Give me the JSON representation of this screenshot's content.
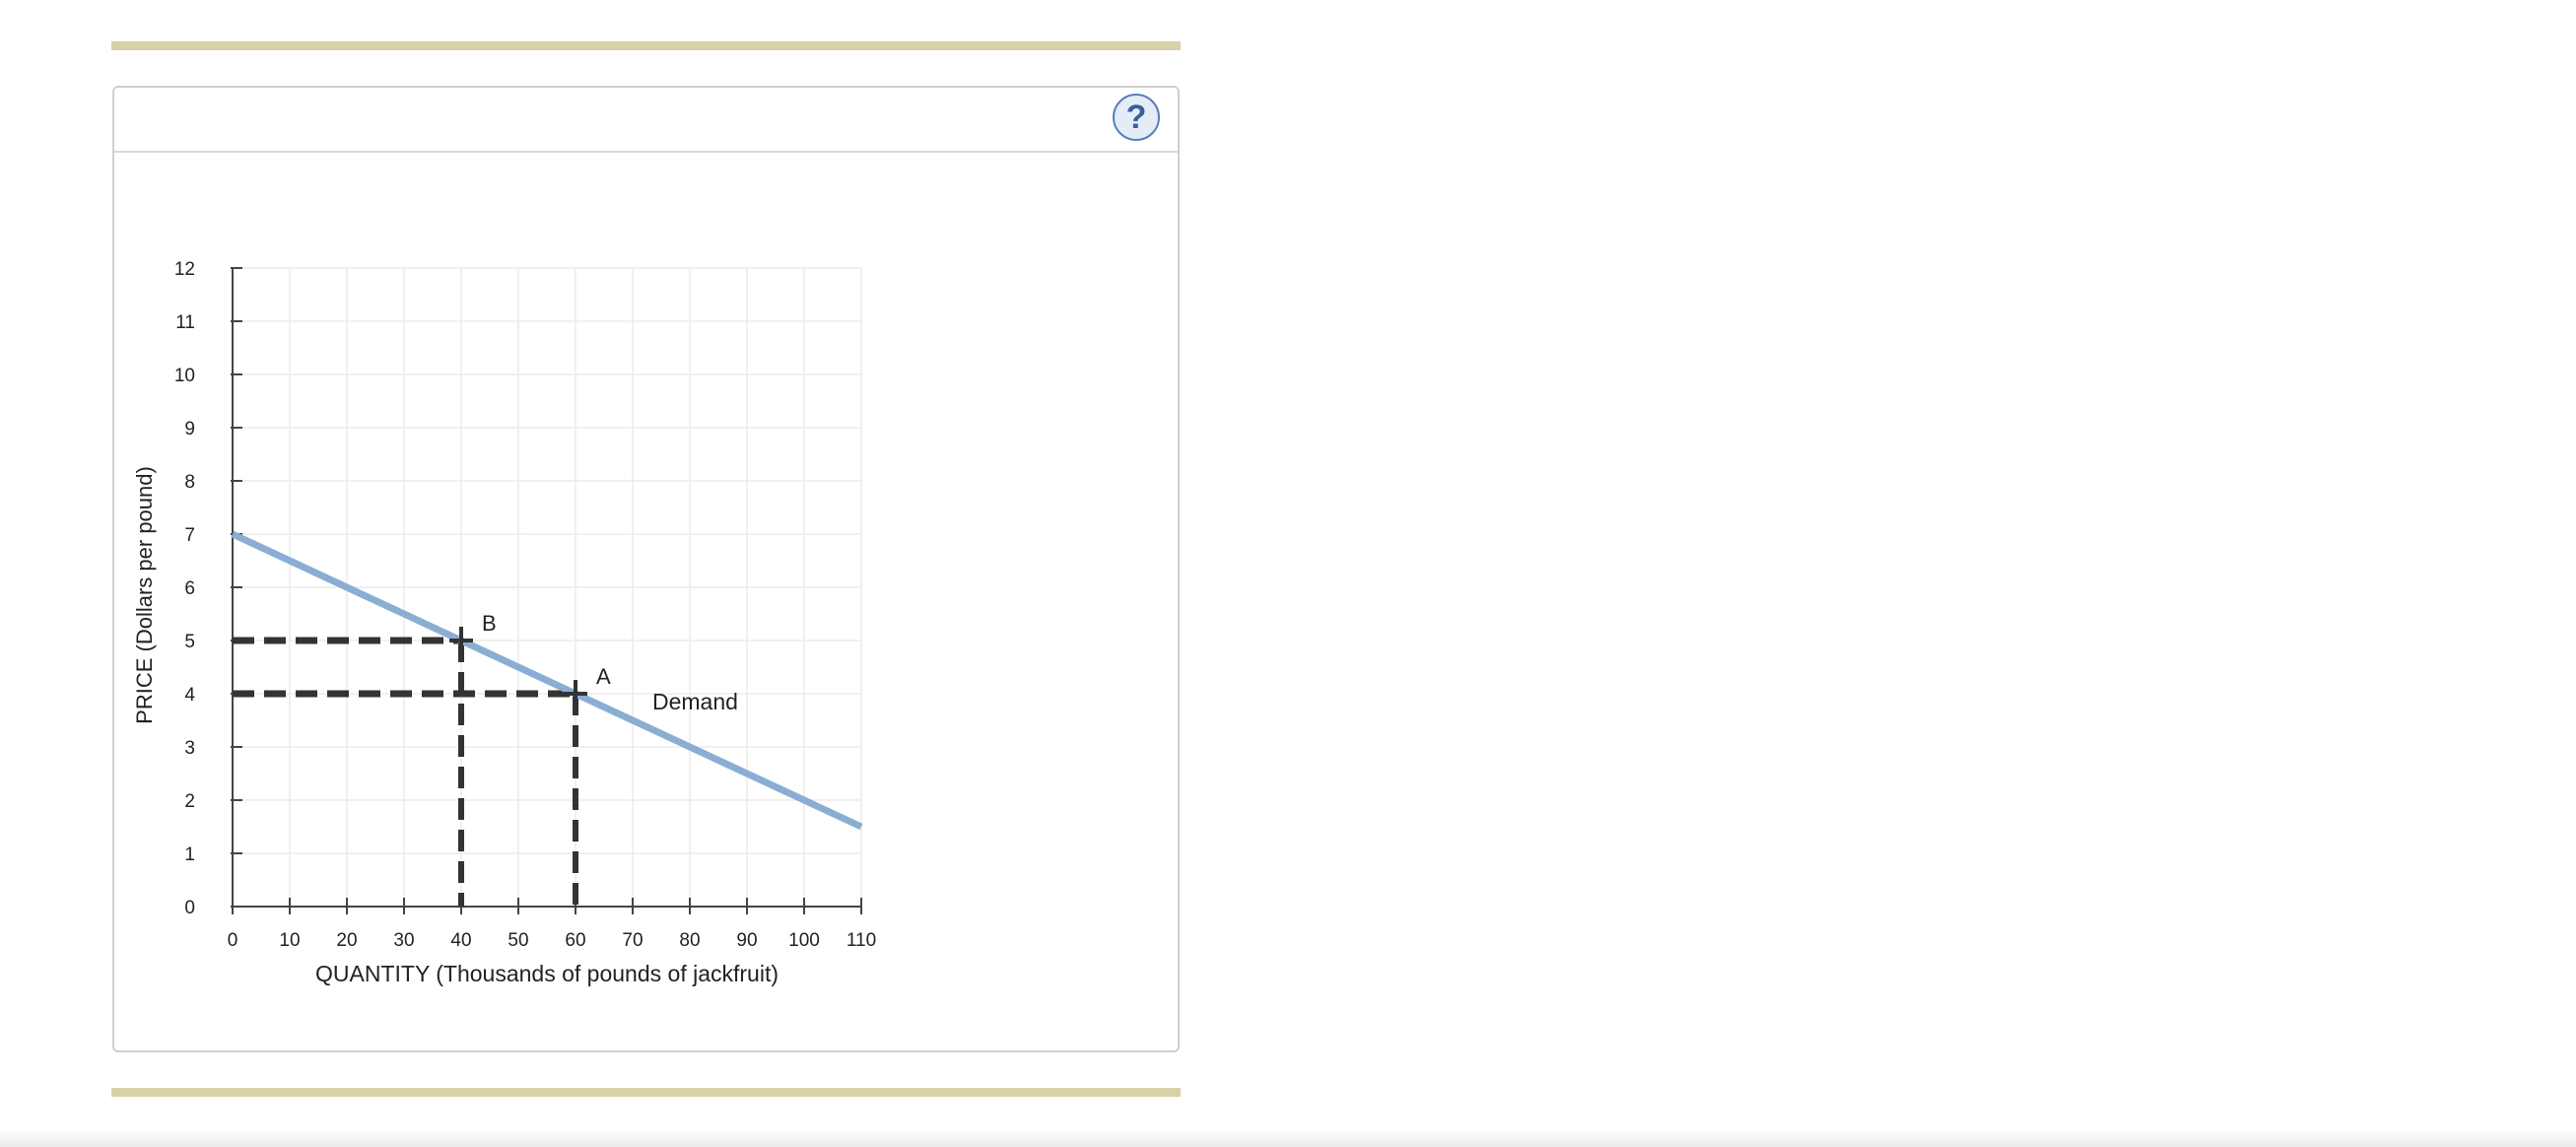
{
  "help": {
    "label": "?",
    "icon": "help-question-icon"
  },
  "colors": {
    "rule": "#d8d0a8",
    "demand_line": "#8aaed3",
    "dashed_guides": "#333333",
    "grid": "#ececec",
    "help_border": "#5a7fb5"
  },
  "chart_data": {
    "type": "line",
    "ylabel": "PRICE (Dollars per pound)",
    "xlabel": "QUANTITY (Thousands of pounds of jackfruit)",
    "xlim": [
      0,
      110
    ],
    "ylim": [
      0,
      12
    ],
    "x_ticks": [
      0,
      10,
      20,
      30,
      40,
      50,
      60,
      70,
      80,
      90,
      100,
      110
    ],
    "y_ticks": [
      0,
      1,
      2,
      3,
      4,
      5,
      6,
      7,
      8,
      9,
      10,
      11,
      12
    ],
    "grid": true,
    "series": [
      {
        "name": "Demand",
        "x": [
          0,
          110
        ],
        "y": [
          7,
          1.5
        ]
      }
    ],
    "points": [
      {
        "label": "B",
        "x": 40,
        "y": 5
      },
      {
        "label": "A",
        "x": 60,
        "y": 4
      }
    ]
  }
}
